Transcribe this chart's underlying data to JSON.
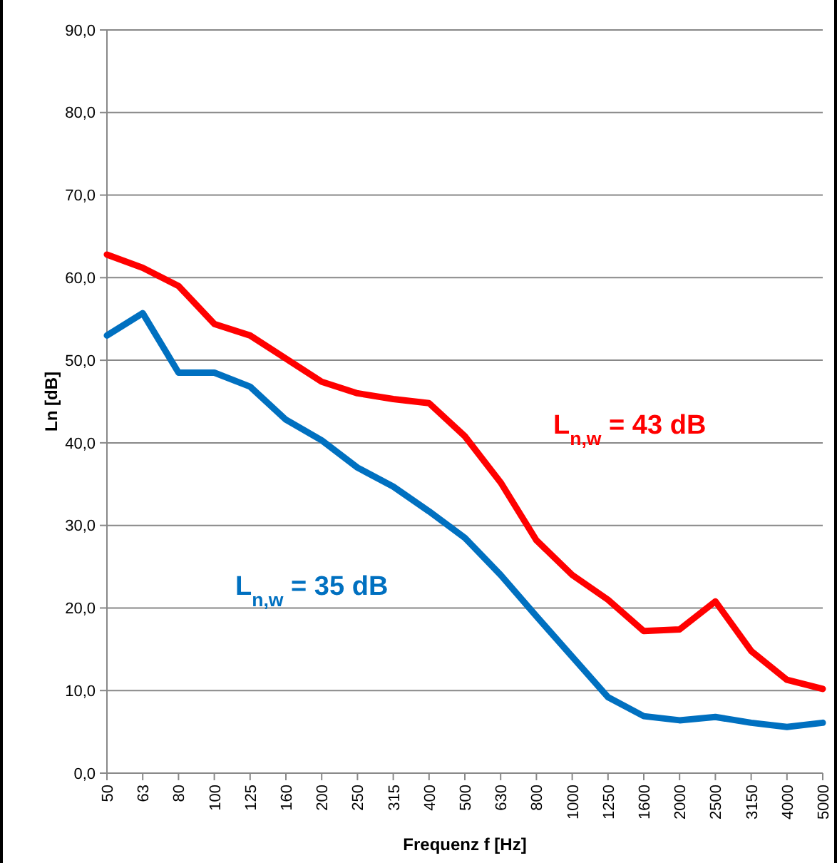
{
  "chart_data": {
    "type": "line",
    "xlabel": "Frequenz f [Hz]",
    "ylabel": "Ln [dB]",
    "categories": [
      "50",
      "63",
      "80",
      "100",
      "125",
      "160",
      "200",
      "250",
      "315",
      "400",
      "500",
      "630",
      "800",
      "1000",
      "1250",
      "1600",
      "2000",
      "2500",
      "3150",
      "4000",
      "5000"
    ],
    "series": [
      {
        "color": "#ff0000",
        "values": [
          62.8,
          61.2,
          59,
          54.4,
          53,
          50.2,
          47.4,
          46,
          45.3,
          44.8,
          40.8,
          35.2,
          28.2,
          24,
          21,
          17.2,
          17.4,
          20.8,
          14.8,
          11.3,
          10.2
        ]
      },
      {
        "color": "#0070c0",
        "values": [
          53,
          55.7,
          48.5,
          48.5,
          46.8,
          42.8,
          40.3,
          37,
          34.7,
          31.7,
          28.5,
          24,
          19,
          14.1,
          9.2,
          6.9,
          6.4,
          6.8,
          6.1,
          5.6,
          6.1
        ]
      }
    ],
    "ylim": [
      0,
      90
    ],
    "yticks": [
      {
        "value": 0,
        "label": "0,0"
      },
      {
        "value": 10,
        "label": "10,0"
      },
      {
        "value": 20,
        "label": "20,0"
      },
      {
        "value": 30,
        "label": "30,0"
      },
      {
        "value": 40,
        "label": "40,0"
      },
      {
        "value": 50,
        "label": "50,0"
      },
      {
        "value": 60,
        "label": "60,0"
      },
      {
        "value": 70,
        "label": "70,0"
      },
      {
        "value": 80,
        "label": "80,0"
      },
      {
        "value": 90,
        "label": "90,0"
      }
    ],
    "grid": "y",
    "marker": "none",
    "line_style": "solid",
    "annotations": [
      "L$_{n,w}$ = 43 dB",
      "L$_{n,w}$ = 35 dB"
    ]
  }
}
